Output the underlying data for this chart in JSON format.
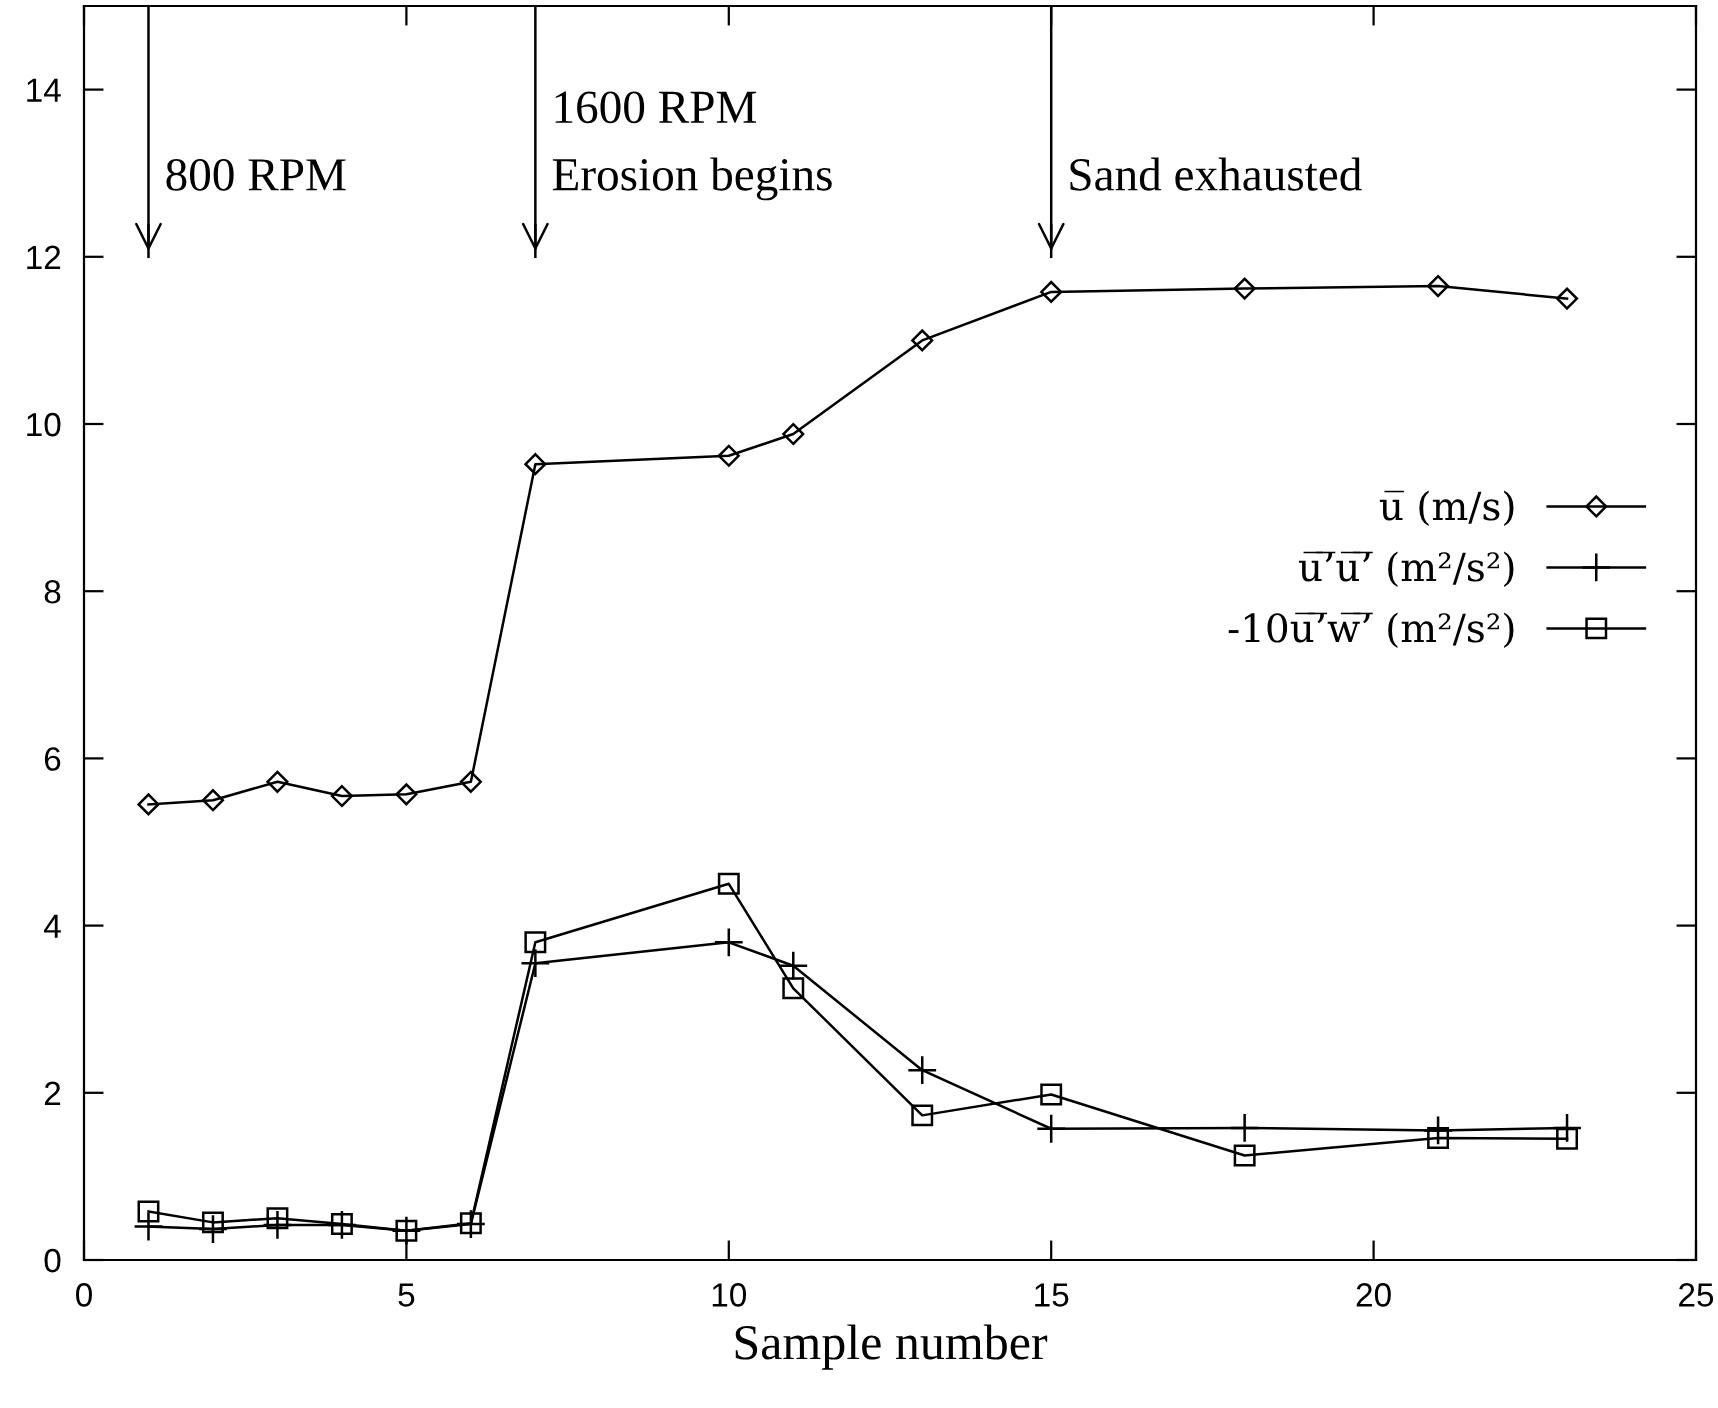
{
  "chart_data": {
    "type": "line",
    "xlabel": "Sample number",
    "xlim": [
      0,
      25
    ],
    "xticks": [
      0,
      5,
      10,
      15,
      20,
      25
    ],
    "ylim": [
      0,
      15
    ],
    "yticks": [
      0,
      2,
      4,
      6,
      8,
      10,
      12,
      14
    ],
    "grid": false,
    "legend": "right",
    "series": [
      {
        "name": "u̅ (m/s)",
        "color": "#000000",
        "marker": "diamond",
        "x": [
          1,
          2,
          3,
          4,
          5,
          6,
          7,
          10,
          11,
          13,
          15,
          18,
          21,
          23
        ],
        "values": [
          5.45,
          5.5,
          5.72,
          5.55,
          5.57,
          5.72,
          9.52,
          9.62,
          9.88,
          11.0,
          11.58,
          11.62,
          11.65,
          11.5
        ]
      },
      {
        "name": "u̅’̅u̅’̅ (m²/s²)",
        "color": "#000000",
        "marker": "cross",
        "x": [
          1,
          2,
          3,
          4,
          5,
          6,
          7,
          10,
          11,
          13,
          15,
          18,
          21,
          23
        ],
        "values": [
          0.4,
          0.37,
          0.42,
          0.42,
          0.35,
          0.43,
          3.55,
          3.8,
          3.52,
          2.27,
          1.57,
          1.58,
          1.55,
          1.58
        ]
      },
      {
        "name": "-10u̅’̅w̅’̅ (m²/s²)",
        "color": "#000000",
        "marker": "square",
        "x": [
          1,
          2,
          3,
          4,
          5,
          6,
          7,
          10,
          11,
          13,
          15,
          18,
          21,
          23
        ],
        "values": [
          0.58,
          0.45,
          0.5,
          0.43,
          0.35,
          0.44,
          3.8,
          4.5,
          3.25,
          1.73,
          1.98,
          1.25,
          1.46,
          1.45
        ]
      }
    ],
    "ref_lines": [
      {
        "axis": "x",
        "value": 1,
        "label": "800 RPM"
      },
      {
        "axis": "x",
        "value": 7,
        "label": "1600 RPM\nErosion begins"
      },
      {
        "axis": "x",
        "value": 15,
        "label": "Sand exhausted"
      }
    ]
  }
}
